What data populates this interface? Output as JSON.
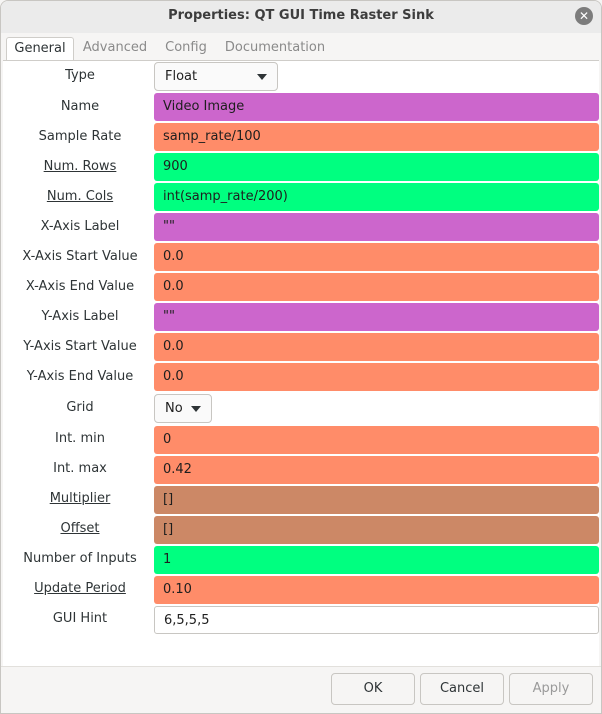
{
  "window": {
    "title": "Properties: QT GUI Time Raster Sink",
    "close_glyph": "✕"
  },
  "tabs": [
    {
      "label": "General",
      "active": true
    },
    {
      "label": "Advanced",
      "active": false
    },
    {
      "label": "Config",
      "active": false
    },
    {
      "label": "Documentation",
      "active": false
    }
  ],
  "colors": {
    "string_field": "#cc66cc",
    "float_field": "#ff8c69",
    "int_field": "#00ff80",
    "vector_field": "#cc8866",
    "plain_field": "#ffffff"
  },
  "params": {
    "type": {
      "label": "Type",
      "value": "Float"
    },
    "name": {
      "label": "Name",
      "value": "Video Image"
    },
    "sample_rate": {
      "label": "Sample Rate",
      "value": "samp_rate/100"
    },
    "num_rows": {
      "label": "Num. Rows",
      "value": "900"
    },
    "num_cols": {
      "label": "Num. Cols",
      "value": "int(samp_rate/200)"
    },
    "x_axis_label": {
      "label": "X-Axis Label",
      "value": "\"\""
    },
    "x_axis_start": {
      "label": "X-Axis Start Value",
      "value": "0.0"
    },
    "x_axis_end": {
      "label": "X-Axis End Value",
      "value": "0.0"
    },
    "y_axis_label": {
      "label": "Y-Axis Label",
      "value": "\"\""
    },
    "y_axis_start": {
      "label": "Y-Axis Start Value",
      "value": "0.0"
    },
    "y_axis_end": {
      "label": "Y-Axis End Value",
      "value": "0.0"
    },
    "grid": {
      "label": "Grid",
      "value": "No"
    },
    "int_min": {
      "label": "Int. min",
      "value": "0"
    },
    "int_max": {
      "label": "Int. max",
      "value": "0.42"
    },
    "multiplier": {
      "label": "Multiplier",
      "value": "[]"
    },
    "offset": {
      "label": "Offset",
      "value": "[]"
    },
    "num_inputs": {
      "label": "Number of Inputs",
      "value": "1"
    },
    "update_period": {
      "label": "Update Period",
      "value": "0.10"
    },
    "gui_hint": {
      "label": "GUI Hint",
      "value": "6,5,5,5"
    }
  },
  "buttons": {
    "ok": "OK",
    "cancel": "Cancel",
    "apply": "Apply"
  }
}
